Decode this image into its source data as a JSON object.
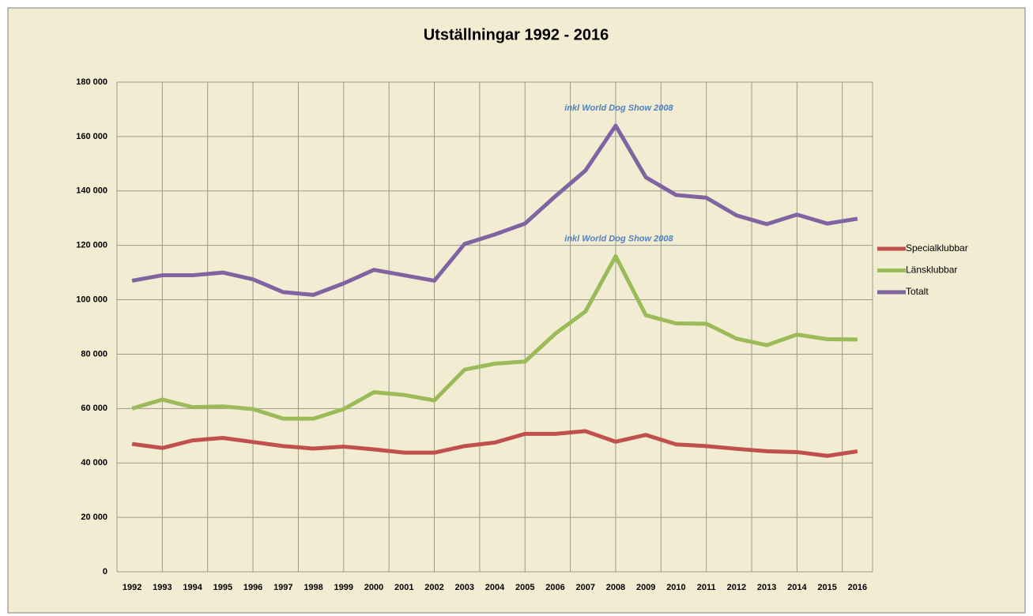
{
  "chart_data": {
    "type": "line",
    "title": "Utställningar  1992 - 2016",
    "categories": [
      "1992",
      "1993",
      "1994",
      "1995",
      "1996",
      "1997",
      "1998",
      "1999",
      "2000",
      "2001",
      "2002",
      "2003",
      "2004",
      "2005",
      "2006",
      "2007",
      "2008",
      "2009",
      "2010",
      "2011",
      "2012",
      "2013",
      "2014",
      "2015",
      "2016"
    ],
    "series": [
      {
        "name": "Specialklubbar",
        "color": "#c0504d",
        "values": [
          47000,
          45500,
          48300,
          49200,
          47700,
          46200,
          45300,
          46000,
          45000,
          43800,
          43800,
          46200,
          47500,
          50700,
          50700,
          51700,
          47800,
          50300,
          46800,
          46200,
          45200,
          44300,
          44000,
          42600,
          44300
        ]
      },
      {
        "name": "Länsklubbar",
        "color": "#9bbb59",
        "values": [
          60000,
          63300,
          60500,
          60800,
          59800,
          56300,
          56300,
          59800,
          66000,
          65000,
          63000,
          74300,
          76500,
          77300,
          87500,
          95700,
          116000,
          94300,
          91300,
          91200,
          85700,
          83300,
          87200,
          85500,
          85400
        ]
      },
      {
        "name": "Totalt",
        "color": "#8064a2",
        "values": [
          107000,
          109000,
          109000,
          110000,
          107500,
          102800,
          101800,
          106000,
          111000,
          109000,
          107000,
          120500,
          124000,
          128000,
          138000,
          147500,
          164000,
          145000,
          138500,
          137500,
          131000,
          127800,
          131300,
          128000,
          129800
        ]
      }
    ],
    "annotations": [
      "inkl World Dog Show 2008",
      "inkl World Dog Show 2008"
    ],
    "ylim": [
      0,
      180000
    ],
    "yticks": [
      0,
      {
        "value": 20000,
        "label": "20 000"
      },
      {
        "value": 40000,
        "label": "40 000"
      },
      {
        "value": 60000,
        "label": "60 000"
      },
      {
        "value": 80000,
        "label": "80 000"
      },
      {
        "value": 100000,
        "label": "100 000"
      },
      {
        "value": 120000,
        "label": "120 000"
      },
      {
        "value": 140000,
        "label": "140 000"
      },
      {
        "value": 160000,
        "label": "160 000"
      },
      {
        "value": 180000,
        "label": "180 000"
      }
    ],
    "grid": true,
    "legend": "right"
  }
}
